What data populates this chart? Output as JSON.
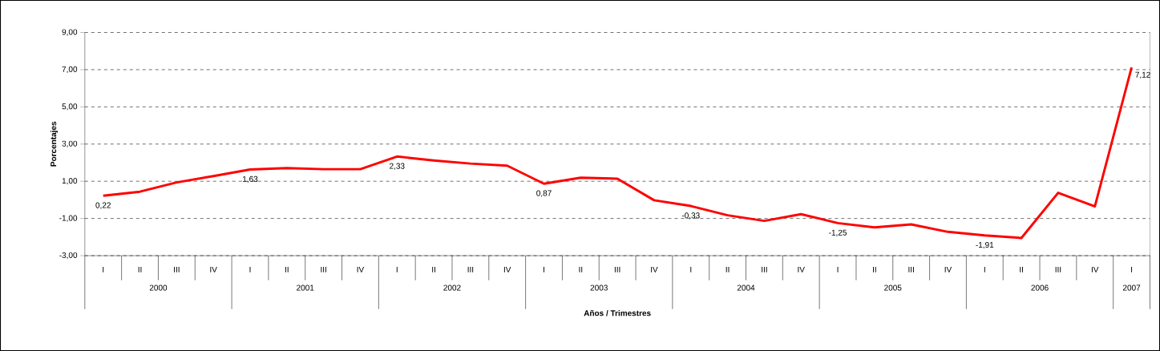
{
  "chart_data": {
    "type": "line",
    "xlabel": "Años / Trimestres",
    "ylabel": "Porcentajes",
    "categories": [
      "I",
      "II",
      "III",
      "IV",
      "I",
      "II",
      "III",
      "IV",
      "I",
      "II",
      "III",
      "IV",
      "I",
      "II",
      "III",
      "IV",
      "I",
      "II",
      "III",
      "IV",
      "I",
      "II",
      "III",
      "IV",
      "I",
      "II",
      "III",
      "IV",
      "I"
    ],
    "series": [
      {
        "color": "#ff0000",
        "values": [
          0.22,
          0.44,
          0.94,
          1.28,
          1.63,
          1.71,
          1.65,
          1.65,
          2.33,
          2.12,
          1.95,
          1.84,
          0.87,
          1.19,
          1.14,
          -0.02,
          -0.33,
          -0.83,
          -1.13,
          -0.77,
          -1.25,
          -1.48,
          -1.32,
          -1.72,
          -1.91,
          -2.05,
          0.38,
          -0.35,
          7.12
        ],
        "value_labels": [
          "0,22",
          null,
          null,
          null,
          "1,63",
          null,
          null,
          null,
          "2,33",
          null,
          null,
          null,
          "0,87",
          null,
          null,
          null,
          "-0,33",
          null,
          null,
          null,
          "-1,25",
          null,
          null,
          null,
          "-1,91",
          null,
          null,
          null,
          "7,12"
        ]
      }
    ],
    "annotations": [
      "2000",
      "2001",
      "2002",
      "2003",
      "2004",
      "2005",
      "2006",
      "2007"
    ],
    "ylim": [
      -3,
      9
    ],
    "yticks": [
      {
        "value": -3,
        "label": "-3,00"
      },
      {
        "value": -1,
        "label": "-1,00"
      },
      {
        "value": 1,
        "label": "1,00"
      },
      {
        "value": 3,
        "label": "3,00"
      },
      {
        "value": 5,
        "label": "5,00"
      },
      {
        "value": 7,
        "label": "7,00"
      },
      {
        "value": 9,
        "label": "9,00"
      }
    ],
    "grid": "y",
    "marker": "none",
    "line_style": "solid"
  }
}
